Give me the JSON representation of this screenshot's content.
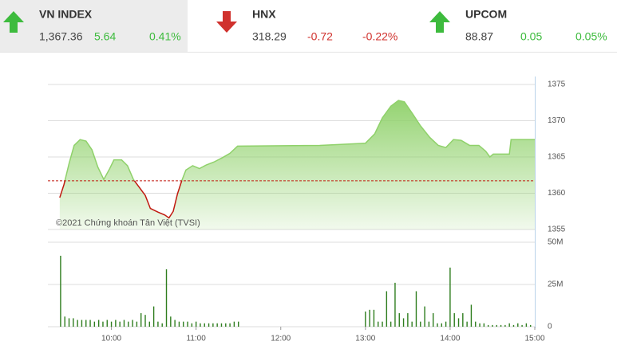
{
  "indices": [
    {
      "name": "VN INDEX",
      "value": "1,367.36",
      "change": "5.64",
      "percent": "0.41%",
      "direction": "up",
      "color": "#3dbb3d",
      "selected": true
    },
    {
      "name": "HNX",
      "value": "318.29",
      "change": "-0.72",
      "percent": "-0.22%",
      "direction": "down",
      "color": "#d0312d"
    },
    {
      "name": "UPCOM",
      "value": "88.87",
      "change": "0.05",
      "percent": "0.05%",
      "direction": "up",
      "color": "#3dbb3d"
    }
  ],
  "chart_data": [
    {
      "type": "area",
      "annotation": "©2021 Chứng khoán Tân Việt (TVSI)",
      "x": [
        9.39,
        9.44,
        9.5,
        9.56,
        9.63,
        9.7,
        9.77,
        9.84,
        9.91,
        9.98,
        10.03,
        10.12,
        10.19,
        10.26,
        10.33,
        10.4,
        10.46,
        10.55,
        10.63,
        10.68,
        10.73,
        10.78,
        10.83,
        10.88,
        10.96,
        11.04,
        11.12,
        11.21,
        11.31,
        11.4,
        11.49,
        12.46,
        13.0,
        13.11,
        13.2,
        13.3,
        13.39,
        13.46,
        13.56,
        13.65,
        13.76,
        13.86,
        13.95,
        14.04,
        14.13,
        14.23,
        14.34,
        14.42,
        14.47,
        14.51,
        14.7,
        14.72,
        15.0
      ],
      "values": [
        1359.4,
        1361.2,
        1364.1,
        1366.6,
        1367.4,
        1367.2,
        1366.0,
        1363.6,
        1361.9,
        1363.4,
        1364.6,
        1364.6,
        1363.8,
        1361.9,
        1360.8,
        1359.7,
        1357.9,
        1357.4,
        1357.0,
        1356.6,
        1357.5,
        1359.9,
        1361.7,
        1363.2,
        1363.8,
        1363.4,
        1363.9,
        1364.3,
        1364.9,
        1365.5,
        1366.5,
        1366.6,
        1366.9,
        1368.2,
        1370.4,
        1372.0,
        1372.8,
        1372.6,
        1370.9,
        1369.3,
        1367.7,
        1366.6,
        1366.3,
        1367.4,
        1367.3,
        1366.6,
        1366.6,
        1365.8,
        1365.0,
        1365.4,
        1365.4,
        1367.4,
        1367.4
      ],
      "baseline": 1361.72,
      "color": "#8fd16a",
      "down_color": "#c0180f",
      "baseline_color": "#c0180f",
      "xlim": [
        9.25,
        15
      ],
      "ylim": [
        1355,
        1375
      ],
      "yticks": [
        1355,
        1360,
        1365,
        1370,
        1375
      ],
      "grid": true
    },
    {
      "type": "bar",
      "color": "#2e7d1e",
      "x": [
        9.4,
        9.45,
        9.5,
        9.55,
        9.6,
        9.65,
        9.7,
        9.75,
        9.8,
        9.85,
        9.9,
        9.95,
        10.0,
        10.05,
        10.1,
        10.15,
        10.2,
        10.25,
        10.3,
        10.35,
        10.4,
        10.45,
        10.5,
        10.55,
        10.6,
        10.65,
        10.7,
        10.75,
        10.8,
        10.85,
        10.9,
        10.95,
        11.0,
        11.05,
        11.1,
        11.15,
        11.2,
        11.25,
        11.3,
        11.35,
        11.4,
        11.45,
        11.5,
        13.0,
        13.05,
        13.1,
        13.15,
        13.2,
        13.25,
        13.3,
        13.35,
        13.4,
        13.45,
        13.5,
        13.55,
        13.6,
        13.65,
        13.7,
        13.75,
        13.8,
        13.85,
        13.9,
        13.95,
        14.0,
        14.05,
        14.1,
        14.15,
        14.2,
        14.25,
        14.3,
        14.35,
        14.4,
        14.45,
        14.5,
        14.55,
        14.6,
        14.65,
        14.7,
        14.75,
        14.8,
        14.85,
        14.9,
        14.95
      ],
      "values": [
        42,
        6,
        5,
        5,
        4,
        4,
        4,
        4,
        3,
        4,
        3,
        4,
        3,
        4,
        3,
        4,
        3,
        4,
        3,
        8,
        7,
        3,
        12,
        3,
        2,
        34,
        6,
        4,
        3,
        3,
        3,
        2,
        3,
        2,
        2,
        2,
        2,
        2,
        2,
        2,
        2,
        3,
        3,
        9,
        10,
        10,
        3,
        3,
        21,
        3,
        26,
        8,
        5,
        8,
        3,
        21,
        3,
        12,
        3,
        8,
        2,
        2,
        3,
        35,
        8,
        5,
        8,
        3,
        13,
        3,
        2,
        2,
        1,
        1,
        1,
        1,
        1,
        2,
        1,
        2,
        1,
        2,
        1
      ],
      "xlim": [
        9.25,
        15
      ],
      "xticks": [
        {
          "value": 10,
          "label": "10:00"
        },
        {
          "value": 11,
          "label": "11:00"
        },
        {
          "value": 12,
          "label": "12:00"
        },
        {
          "value": 13,
          "label": "13:00"
        },
        {
          "value": 14,
          "label": "14:00"
        },
        {
          "value": 15,
          "label": "15:00"
        }
      ],
      "ylim": [
        0,
        50
      ],
      "yticks": [
        0,
        {
          "value": 25,
          "label": "25M"
        },
        {
          "value": 50,
          "label": "50M"
        }
      ],
      "grid": true
    }
  ]
}
